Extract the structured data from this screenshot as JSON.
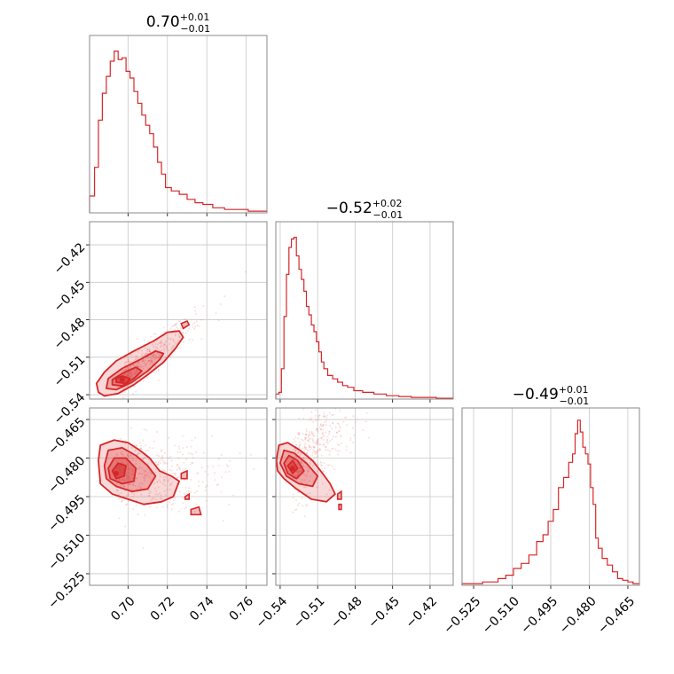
{
  "colors": {
    "accent": "#d62728",
    "grid": "#c8c8c8",
    "frame": "#888888"
  },
  "chart_data": {
    "type": "corner",
    "parameters": [
      {
        "title": {
          "median": "0.70",
          "upper": "+0.01",
          "lower": "−0.01"
        },
        "range": [
          0.6805,
          0.7705
        ],
        "ticks": [
          0.7,
          0.72,
          0.74,
          0.76
        ],
        "tick_labels": [
          "0.70",
          "0.72",
          "0.74",
          "0.76"
        ],
        "hist": {
          "x": [
            0.682,
            0.684,
            0.686,
            0.688,
            0.69,
            0.692,
            0.694,
            0.696,
            0.698,
            0.7,
            0.702,
            0.704,
            0.706,
            0.708,
            0.71,
            0.712,
            0.714,
            0.716,
            0.718,
            0.72,
            0.724,
            0.728,
            0.732,
            0.736,
            0.74,
            0.746,
            0.752,
            0.758,
            0.764,
            0.77
          ],
          "y": [
            0.1,
            0.27,
            0.55,
            0.71,
            0.81,
            0.9,
            0.96,
            0.91,
            0.92,
            0.84,
            0.8,
            0.72,
            0.65,
            0.58,
            0.52,
            0.47,
            0.39,
            0.3,
            0.23,
            0.15,
            0.13,
            0.11,
            0.08,
            0.06,
            0.05,
            0.03,
            0.02,
            0.02,
            0.01,
            0.01
          ]
        }
      },
      {
        "title": {
          "median": "−0.52",
          "upper": "+0.02",
          "lower": "−0.01"
        },
        "range": [
          -0.5435,
          -0.4015
        ],
        "ticks": [
          -0.54,
          -0.51,
          -0.48,
          -0.45,
          -0.42
        ],
        "tick_labels": [
          "−0.54",
          "−0.51",
          "−0.48",
          "−0.45",
          "−0.42"
        ],
        "hist": {
          "x": [
            -0.542,
            -0.54,
            -0.538,
            -0.536,
            -0.534,
            -0.532,
            -0.53,
            -0.528,
            -0.526,
            -0.524,
            -0.522,
            -0.52,
            -0.518,
            -0.516,
            -0.514,
            -0.512,
            -0.51,
            -0.508,
            -0.506,
            -0.504,
            -0.5,
            -0.496,
            -0.492,
            -0.488,
            -0.484,
            -0.478,
            -0.47,
            -0.46,
            -0.45,
            -0.44,
            -0.43,
            -0.42,
            -0.41
          ],
          "y": [
            0.03,
            0.04,
            0.18,
            0.49,
            0.74,
            0.9,
            0.95,
            0.96,
            0.85,
            0.77,
            0.71,
            0.64,
            0.55,
            0.5,
            0.44,
            0.4,
            0.34,
            0.28,
            0.22,
            0.18,
            0.14,
            0.12,
            0.1,
            0.08,
            0.07,
            0.05,
            0.04,
            0.03,
            0.02,
            0.015,
            0.01,
            0.01,
            0.005
          ]
        }
      },
      {
        "title": {
          "median": "−0.49",
          "upper": "+0.01",
          "lower": "−0.01"
        },
        "range": [
          -0.5295,
          -0.4605
        ],
        "ticks": [
          -0.525,
          -0.51,
          -0.495,
          -0.48,
          -0.465
        ],
        "tick_labels": [
          "−0.525",
          "−0.510",
          "−0.495",
          "−0.480",
          "−0.465"
        ],
        "hist": {
          "x": [
            -0.529,
            -0.526,
            -0.523,
            -0.52,
            -0.517,
            -0.514,
            -0.511,
            -0.508,
            -0.505,
            -0.502,
            -0.499,
            -0.497,
            -0.495,
            -0.493,
            -0.491,
            -0.489,
            -0.487,
            -0.486,
            -0.485,
            -0.484,
            -0.483,
            -0.482,
            -0.481,
            -0.48,
            -0.479,
            -0.478,
            -0.477,
            -0.476,
            -0.474,
            -0.472,
            -0.47,
            -0.468,
            -0.466,
            -0.464,
            -0.462
          ],
          "y": [
            0.01,
            0.01,
            0.01,
            0.02,
            0.02,
            0.04,
            0.06,
            0.1,
            0.13,
            0.18,
            0.26,
            0.3,
            0.38,
            0.45,
            0.58,
            0.64,
            0.73,
            0.78,
            0.9,
            0.98,
            0.91,
            0.82,
            0.78,
            0.72,
            0.58,
            0.48,
            0.28,
            0.22,
            0.16,
            0.12,
            0.08,
            0.04,
            0.03,
            0.02,
            0.01
          ]
        }
      }
    ],
    "pairs": [
      {
        "row": 1,
        "col": 0,
        "peak": [
          0.697,
          -0.528
        ],
        "contours": [
          [
            [
              0.685,
              -0.538
            ],
            [
              0.688,
              -0.541
            ],
            [
              0.695,
              -0.539
            ],
            [
              0.703,
              -0.532
            ],
            [
              0.71,
              -0.524
            ],
            [
              0.718,
              -0.514
            ],
            [
              0.724,
              -0.503
            ],
            [
              0.728,
              -0.494
            ],
            [
              0.726,
              -0.489
            ],
            [
              0.72,
              -0.49
            ],
            [
              0.713,
              -0.497
            ],
            [
              0.703,
              -0.505
            ],
            [
              0.694,
              -0.513
            ],
            [
              0.688,
              -0.522
            ],
            [
              0.684,
              -0.531
            ]
          ],
          [
            [
              0.689,
              -0.535
            ],
            [
              0.694,
              -0.536
            ],
            [
              0.702,
              -0.53
            ],
            [
              0.71,
              -0.521
            ],
            [
              0.716,
              -0.512
            ],
            [
              0.718,
              -0.507
            ],
            [
              0.714,
              -0.505
            ],
            [
              0.706,
              -0.512
            ],
            [
              0.697,
              -0.519
            ],
            [
              0.69,
              -0.527
            ]
          ],
          [
            [
              0.692,
              -0.532
            ],
            [
              0.697,
              -0.533
            ],
            [
              0.703,
              -0.527
            ],
            [
              0.707,
              -0.521
            ],
            [
              0.704,
              -0.518
            ],
            [
              0.697,
              -0.523
            ],
            [
              0.692,
              -0.528
            ]
          ],
          [
            [
              0.694,
              -0.53
            ],
            [
              0.699,
              -0.531
            ],
            [
              0.701,
              -0.527
            ],
            [
              0.697,
              -0.525
            ],
            [
              0.694,
              -0.527
            ]
          ]
        ],
        "extra_contours": [
          [
            [
              0.728,
              -0.487
            ],
            [
              0.731,
              -0.484
            ],
            [
              0.73,
              -0.481
            ],
            [
              0.727,
              -0.483
            ]
          ]
        ],
        "scatter_spread": [
          0.012,
          0.01
        ]
      },
      {
        "row": 2,
        "col": 0,
        "peak": [
          0.694,
          -0.486
        ],
        "contours": [
          [
            [
              0.685,
              -0.481
            ],
            [
              0.686,
              -0.475
            ],
            [
              0.693,
              -0.473
            ],
            [
              0.7,
              -0.474
            ],
            [
              0.706,
              -0.477
            ],
            [
              0.711,
              -0.48
            ],
            [
              0.716,
              -0.485
            ],
            [
              0.722,
              -0.487
            ],
            [
              0.726,
              -0.489
            ],
            [
              0.723,
              -0.495
            ],
            [
              0.717,
              -0.497
            ],
            [
              0.708,
              -0.498
            ],
            [
              0.7,
              -0.496
            ],
            [
              0.692,
              -0.494
            ],
            [
              0.686,
              -0.49
            ]
          ],
          [
            [
              0.688,
              -0.483
            ],
            [
              0.69,
              -0.477
            ],
            [
              0.697,
              -0.476
            ],
            [
              0.704,
              -0.479
            ],
            [
              0.71,
              -0.483
            ],
            [
              0.714,
              -0.487
            ],
            [
              0.71,
              -0.492
            ],
            [
              0.702,
              -0.493
            ],
            [
              0.694,
              -0.491
            ],
            [
              0.689,
              -0.488
            ]
          ],
          [
            [
              0.69,
              -0.484
            ],
            [
              0.693,
              -0.48
            ],
            [
              0.699,
              -0.48
            ],
            [
              0.704,
              -0.484
            ],
            [
              0.703,
              -0.489
            ],
            [
              0.697,
              -0.49
            ],
            [
              0.691,
              -0.488
            ]
          ],
          [
            [
              0.692,
              -0.485
            ],
            [
              0.695,
              -0.482
            ],
            [
              0.699,
              -0.483
            ],
            [
              0.698,
              -0.487
            ],
            [
              0.694,
              -0.488
            ]
          ]
        ],
        "extra_contours": [
          [
            [
              0.727,
              -0.486
            ],
            [
              0.73,
              -0.485
            ],
            [
              0.73,
              -0.488
            ],
            [
              0.727,
              -0.488
            ]
          ],
          [
            [
              0.729,
              -0.495
            ],
            [
              0.731,
              -0.494
            ],
            [
              0.731,
              -0.496
            ],
            [
              0.729,
              -0.496
            ]
          ],
          [
            [
              0.732,
              -0.5
            ],
            [
              0.736,
              -0.499
            ],
            [
              0.737,
              -0.502
            ],
            [
              0.732,
              -0.502
            ]
          ]
        ],
        "scatter_spread": [
          0.015,
          0.008
        ]
      },
      {
        "row": 2,
        "col": 1,
        "peak": [
          -0.53,
          -0.484
        ],
        "contours": [
          [
            [
              -0.543,
              -0.481
            ],
            [
              -0.541,
              -0.475
            ],
            [
              -0.534,
              -0.474
            ],
            [
              -0.524,
              -0.477
            ],
            [
              -0.514,
              -0.481
            ],
            [
              -0.506,
              -0.486
            ],
            [
              -0.5,
              -0.49
            ],
            [
              -0.496,
              -0.494
            ],
            [
              -0.503,
              -0.497
            ],
            [
              -0.515,
              -0.496
            ],
            [
              -0.527,
              -0.492
            ],
            [
              -0.537,
              -0.488
            ],
            [
              -0.542,
              -0.485
            ]
          ],
          [
            [
              -0.54,
              -0.482
            ],
            [
              -0.537,
              -0.477
            ],
            [
              -0.529,
              -0.478
            ],
            [
              -0.519,
              -0.482
            ],
            [
              -0.51,
              -0.487
            ],
            [
              -0.514,
              -0.491
            ],
            [
              -0.525,
              -0.49
            ],
            [
              -0.535,
              -0.487
            ]
          ],
          [
            [
              -0.537,
              -0.482
            ],
            [
              -0.533,
              -0.479
            ],
            [
              -0.526,
              -0.481
            ],
            [
              -0.521,
              -0.485
            ],
            [
              -0.527,
              -0.488
            ],
            [
              -0.534,
              -0.486
            ]
          ],
          [
            [
              -0.534,
              -0.483
            ],
            [
              -0.53,
              -0.481
            ],
            [
              -0.526,
              -0.484
            ],
            [
              -0.53,
              -0.486
            ]
          ]
        ],
        "extra_contours": [
          [
            [
              -0.494,
              -0.494
            ],
            [
              -0.491,
              -0.493
            ],
            [
              -0.491,
              -0.496
            ],
            [
              -0.494,
              -0.496
            ]
          ],
          [
            [
              -0.493,
              -0.498
            ],
            [
              -0.491,
              -0.498
            ],
            [
              -0.491,
              -0.5
            ],
            [
              -0.493,
              -0.5
            ]
          ]
        ],
        "scatter_spread": [
          0.012,
          0.008
        ]
      }
    ]
  }
}
